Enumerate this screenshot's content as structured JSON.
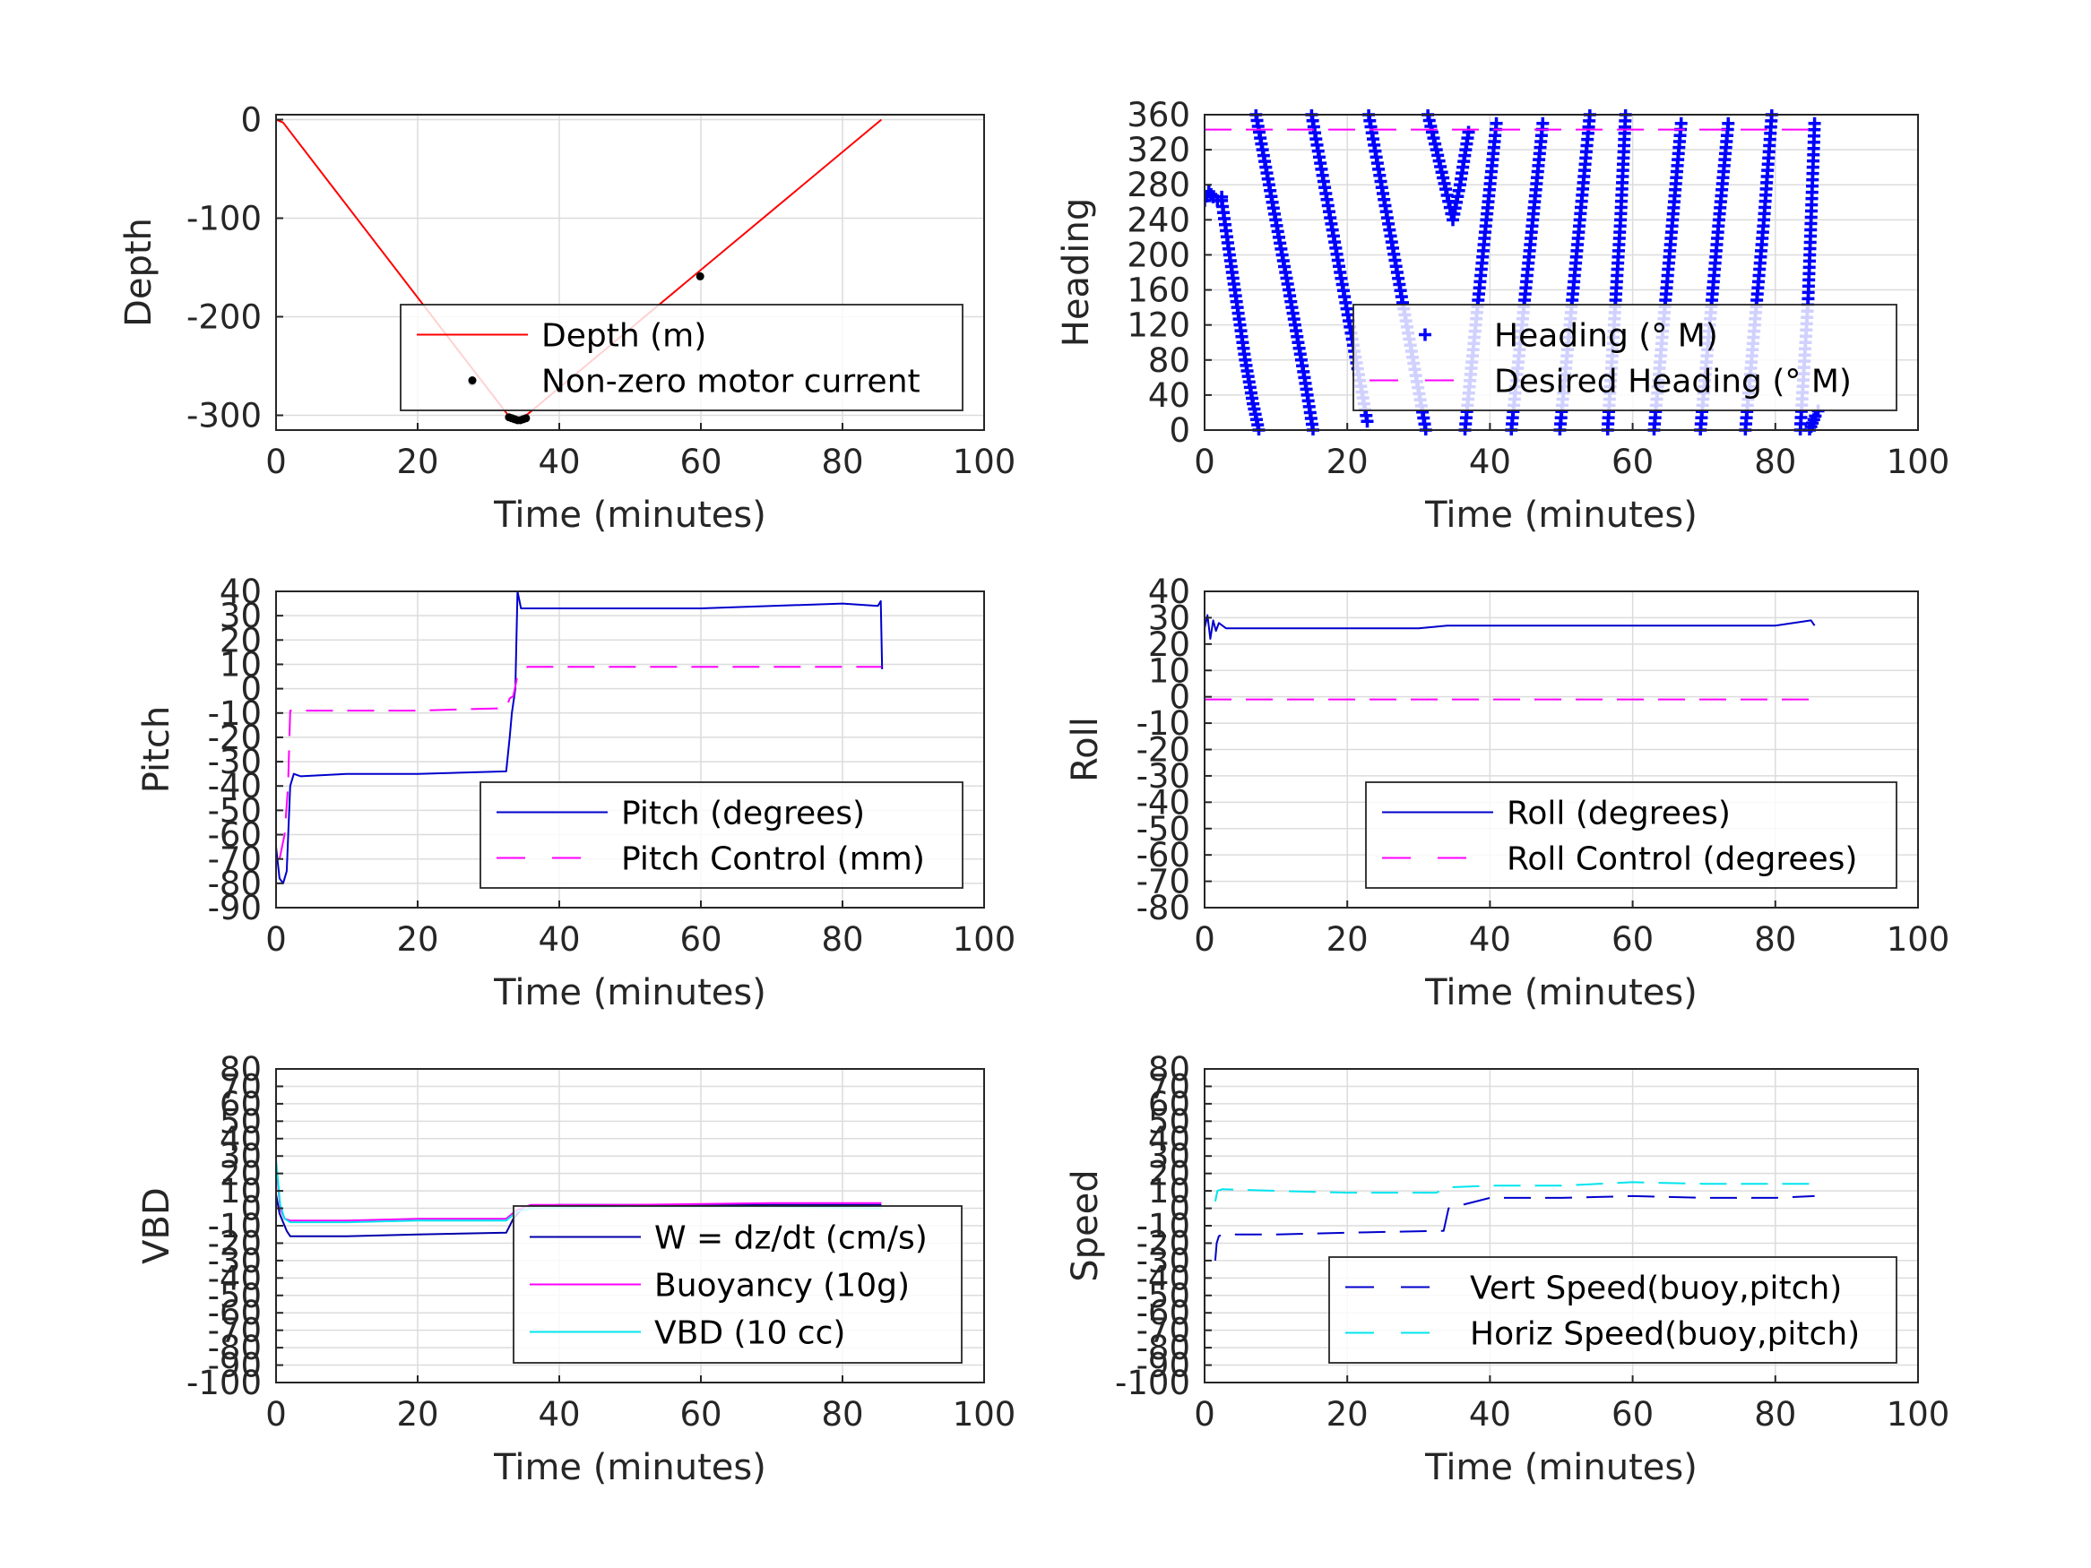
{
  "chart_data": [
    {
      "id": "depth",
      "type": "line",
      "xlabel": "Time (minutes)",
      "ylabel": "Depth",
      "xlim": [
        0,
        100
      ],
      "ylim": [
        -315,
        5
      ],
      "xticks": [
        0,
        20,
        40,
        60,
        80,
        100
      ],
      "yticks": [
        0,
        -100,
        -200,
        -300
      ],
      "grid": true,
      "legend_position": "lower-right",
      "series": [
        {
          "name": "Depth (m)",
          "style": "solid",
          "color": "#ff0000",
          "marker": "none",
          "x": [
            0,
            1,
            33,
            34,
            35,
            85.5
          ],
          "y": [
            0,
            -3,
            -302,
            -305,
            -302,
            0
          ]
        },
        {
          "name": "Non-zero motor current",
          "style": "none",
          "color": "#000000",
          "marker": "dot",
          "x": [
            27.7,
            32.9,
            33.3,
            33.7,
            34.1,
            34.5,
            34.9,
            35.3,
            59.9
          ],
          "y": [
            -266,
            -302,
            -303,
            -304,
            -305,
            -305,
            -304,
            -303,
            -159
          ]
        }
      ]
    },
    {
      "id": "heading",
      "type": "scatter",
      "xlabel": "Time (minutes)",
      "ylabel": "Heading",
      "xlim": [
        0,
        100
      ],
      "ylim": [
        0,
        360
      ],
      "xticks": [
        0,
        20,
        40,
        60,
        80,
        100
      ],
      "yticks": [
        0,
        40,
        80,
        120,
        160,
        200,
        240,
        280,
        320,
        360
      ],
      "grid": true,
      "legend_position": "lower-right",
      "series": [
        {
          "name": "Heading (° M)",
          "style": "none",
          "color": "#0000ff",
          "marker": "plus",
          "segments": [
            {
              "x": [
                0.0,
                0.6,
                1.2,
                1.8,
                2.4
              ],
              "y": [
                262,
                272,
                266,
                262,
                266
              ]
            },
            {
              "x": [
                2.4,
                3.5,
                4.6,
                5.7,
                6.8,
                7.6
              ],
              "y": [
                262,
                200,
                140,
                80,
                30,
                0
              ]
            },
            {
              "x": [
                7.2,
                9.5,
                11.8,
                14.0,
                15.2
              ],
              "y": [
                360,
                260,
                160,
                60,
                0
              ]
            },
            {
              "x": [
                15.0,
                17.0,
                19.0,
                21.0,
                22.8
              ],
              "y": [
                360,
                270,
                180,
                90,
                10
              ]
            },
            {
              "x": [
                23.0,
                25.0,
                27.0,
                29.0,
                31.0
              ],
              "y": [
                360,
                270,
                180,
                90,
                0
              ]
            },
            {
              "x": [
                31.3,
                32.5,
                33.8,
                34.8,
                35.8,
                37.0
              ],
              "y": [
                360,
                320,
                275,
                240,
                280,
                340
              ]
            },
            {
              "x": [
                36.5,
                38.0,
                39.5,
                40.9
              ],
              "y": [
                0,
                120,
                240,
                350
              ]
            },
            {
              "x": [
                43.0,
                44.5,
                46.0,
                47.4
              ],
              "y": [
                0,
                120,
                240,
                350
              ]
            },
            {
              "x": [
                49.8,
                51.2,
                52.6,
                54.0
              ],
              "y": [
                0,
                120,
                240,
                360
              ]
            },
            {
              "x": [
                56.5,
                57.4,
                58.3,
                59.0
              ],
              "y": [
                0,
                120,
                240,
                360
              ]
            },
            {
              "x": [
                63.0,
                64.3,
                65.6,
                66.8
              ],
              "y": [
                0,
                120,
                240,
                350
              ]
            },
            {
              "x": [
                69.5,
                70.8,
                72.1,
                73.4
              ],
              "y": [
                0,
                120,
                240,
                350
              ]
            },
            {
              "x": [
                75.8,
                77.1,
                78.4,
                79.5
              ],
              "y": [
                0,
                120,
                240,
                360
              ]
            },
            {
              "x": [
                83.5,
                84.6,
                85.5
              ],
              "y": [
                0,
                150,
                350
              ]
            },
            {
              "x": [
                84.8,
                85.2,
                85.6,
                86.0
              ],
              "y": [
                0,
                8,
                16,
                22
              ]
            }
          ]
        },
        {
          "name": "Desired Heading (° M)",
          "style": "dashed",
          "color": "#ff00ff",
          "marker": "none",
          "x": [
            0,
            85.5
          ],
          "y": [
            343,
            343
          ]
        }
      ]
    },
    {
      "id": "pitch",
      "type": "line",
      "xlabel": "Time (minutes)",
      "ylabel": "Pitch",
      "xlim": [
        0,
        100
      ],
      "ylim": [
        -90,
        40
      ],
      "xticks": [
        0,
        20,
        40,
        60,
        80,
        100
      ],
      "yticks": [
        40,
        30,
        20,
        10,
        0,
        -10,
        -20,
        -30,
        -40,
        -50,
        -60,
        -70,
        -80,
        -90
      ],
      "grid": true,
      "legend_position": "lower-right",
      "series": [
        {
          "name": "Pitch (degrees)",
          "style": "solid",
          "color": "#0000cc",
          "marker": "none",
          "x": [
            0,
            0.5,
            1.0,
            1.5,
            2.0,
            2.5,
            3.5,
            10,
            20,
            32.5,
            33.0,
            33.3,
            33.8,
            34.1,
            34.6,
            40,
            50,
            60,
            70,
            80,
            85.0,
            85.4,
            85.6
          ],
          "y": [
            -65,
            -78,
            -80,
            -75,
            -40,
            -35,
            -36,
            -35,
            -35,
            -34,
            -20,
            -10,
            0,
            40,
            33,
            33,
            33,
            33,
            34,
            35,
            34,
            36,
            8
          ]
        },
        {
          "name": "Pitch Control (mm)",
          "style": "dashed",
          "color": "#ff00ff",
          "marker": "none",
          "x": [
            0.5,
            1.2,
            1.7,
            2.0,
            10,
            20,
            32.5,
            33.0,
            33.5,
            34.0,
            35.5,
            50,
            70,
            85.5
          ],
          "y": [
            -70,
            -60,
            -40,
            -9,
            -9,
            -9,
            -8,
            -4,
            -3,
            4,
            9,
            9,
            9,
            9
          ]
        }
      ]
    },
    {
      "id": "roll",
      "type": "line",
      "xlabel": "Time (minutes)",
      "ylabel": "Roll",
      "xlim": [
        0,
        100
      ],
      "ylim": [
        -80,
        40
      ],
      "xticks": [
        0,
        20,
        40,
        60,
        80,
        100
      ],
      "yticks": [
        40,
        30,
        20,
        10,
        0,
        -10,
        -20,
        -30,
        -40,
        -50,
        -60,
        -70,
        -80
      ],
      "grid": true,
      "legend_position": "lower-right",
      "series": [
        {
          "name": "Roll (degrees)",
          "style": "solid",
          "color": "#0000cc",
          "marker": "none",
          "x": [
            0,
            0.4,
            0.8,
            1.2,
            1.6,
            2.0,
            3,
            10,
            20,
            30,
            34,
            40,
            50,
            60,
            70,
            80,
            85.0,
            85.5
          ],
          "y": [
            26,
            31,
            22,
            29,
            25,
            28,
            26,
            26,
            26,
            26,
            27,
            27,
            27,
            27,
            27,
            27,
            29,
            27
          ]
        },
        {
          "name": "Roll Control (degrees)",
          "style": "dashed",
          "color": "#ff00ff",
          "marker": "none",
          "x": [
            0,
            85.5
          ],
          "y": [
            -1,
            -1
          ]
        }
      ]
    },
    {
      "id": "vbd",
      "type": "line",
      "xlabel": "Time (minutes)",
      "ylabel": "VBD",
      "xlim": [
        0,
        100
      ],
      "ylim": [
        -100,
        80
      ],
      "xticks": [
        0,
        20,
        40,
        60,
        80,
        100
      ],
      "yticks": [
        80,
        70,
        60,
        50,
        40,
        30,
        20,
        10,
        0,
        -10,
        -20,
        -30,
        -40,
        -50,
        -60,
        -70,
        -80,
        -90,
        -100
      ],
      "ytick_labels": [
        "80",
        "70",
        "60",
        "50",
        "40",
        "30",
        "20",
        "10",
        "0",
        "-10",
        "-20",
        "-30",
        "-40",
        "-50",
        "-60",
        "-70",
        "-80",
        "-90",
        "-100"
      ],
      "grid": true,
      "legend_position": "lower-right",
      "series": [
        {
          "name": "W = dz/dt (cm/s)",
          "style": "solid",
          "color": "#0000aa",
          "marker": "none",
          "x": [
            0,
            0.5,
            1.0,
            1.5,
            2.0,
            10,
            20,
            32.5,
            33.5,
            35.0,
            40,
            50,
            60,
            70,
            80,
            85.5
          ],
          "y": [
            8,
            -3,
            -8,
            -13,
            -16,
            -16,
            -15,
            -14,
            -6,
            1,
            2,
            2,
            2,
            2,
            2,
            2
          ]
        },
        {
          "name": "Buoyancy (10g)",
          "style": "solid",
          "color": "#ff00ff",
          "marker": "none",
          "x": [
            0,
            0.6,
            1.2,
            2.0,
            10,
            20,
            32.5,
            34.0,
            36.0,
            50,
            70,
            85.5
          ],
          "y": [
            26,
            0,
            -6,
            -7,
            -7,
            -6,
            -6,
            -1,
            2,
            2,
            3,
            3
          ]
        },
        {
          "name": "VBD (10 cc)",
          "style": "solid",
          "color": "#00e5ee",
          "marker": "none",
          "x": [
            0,
            0.6,
            1.2,
            2.0,
            10,
            20,
            32.5,
            34.0,
            36.0,
            50,
            70,
            85.5
          ],
          "y": [
            28,
            2,
            -6,
            -8,
            -8,
            -7,
            -7,
            -2,
            0,
            1,
            1,
            0
          ]
        }
      ]
    },
    {
      "id": "speed",
      "type": "line",
      "xlabel": "Time (minutes)",
      "ylabel": "Speed",
      "xlim": [
        0,
        100
      ],
      "ylim": [
        -100,
        80
      ],
      "xticks": [
        0,
        20,
        40,
        60,
        80,
        100
      ],
      "yticks": [
        80,
        70,
        60,
        50,
        40,
        30,
        20,
        10,
        0,
        -10,
        -20,
        -30,
        -40,
        -50,
        -60,
        -70,
        -80,
        -90,
        -100
      ],
      "ytick_labels": [
        "80",
        "70",
        "60",
        "50",
        "40",
        "30",
        "20",
        "10",
        "0",
        "-10",
        "-20",
        "-30",
        "-40",
        "-50",
        "-60",
        "-70",
        "-80",
        "-90",
        "-100"
      ],
      "grid": true,
      "legend_position": "lower-right",
      "series": [
        {
          "name": "Vert Speed(buoy,pitch)",
          "style": "dashed",
          "color": "#0000cc",
          "marker": "none",
          "x": [
            1.5,
            1.7,
            2.0,
            2.5,
            10,
            20,
            32.0,
            33.5,
            34.2,
            40,
            50,
            60,
            70,
            80,
            85.5
          ],
          "y": [
            -30,
            -20,
            -16,
            -15,
            -15,
            -14,
            -13,
            -13,
            0,
            6,
            6,
            7,
            6,
            6,
            7
          ]
        },
        {
          "name": "Horiz Speed(buoy,pitch)",
          "style": "dashed",
          "color": "#00e5ee",
          "marker": "none",
          "x": [
            1.5,
            1.8,
            2.5,
            10,
            20,
            32.5,
            34.0,
            40,
            50,
            60,
            70,
            80,
            85.5
          ],
          "y": [
            4,
            10,
            11,
            10,
            9,
            9,
            12,
            13,
            13,
            15,
            14,
            14,
            14
          ]
        }
      ]
    }
  ]
}
